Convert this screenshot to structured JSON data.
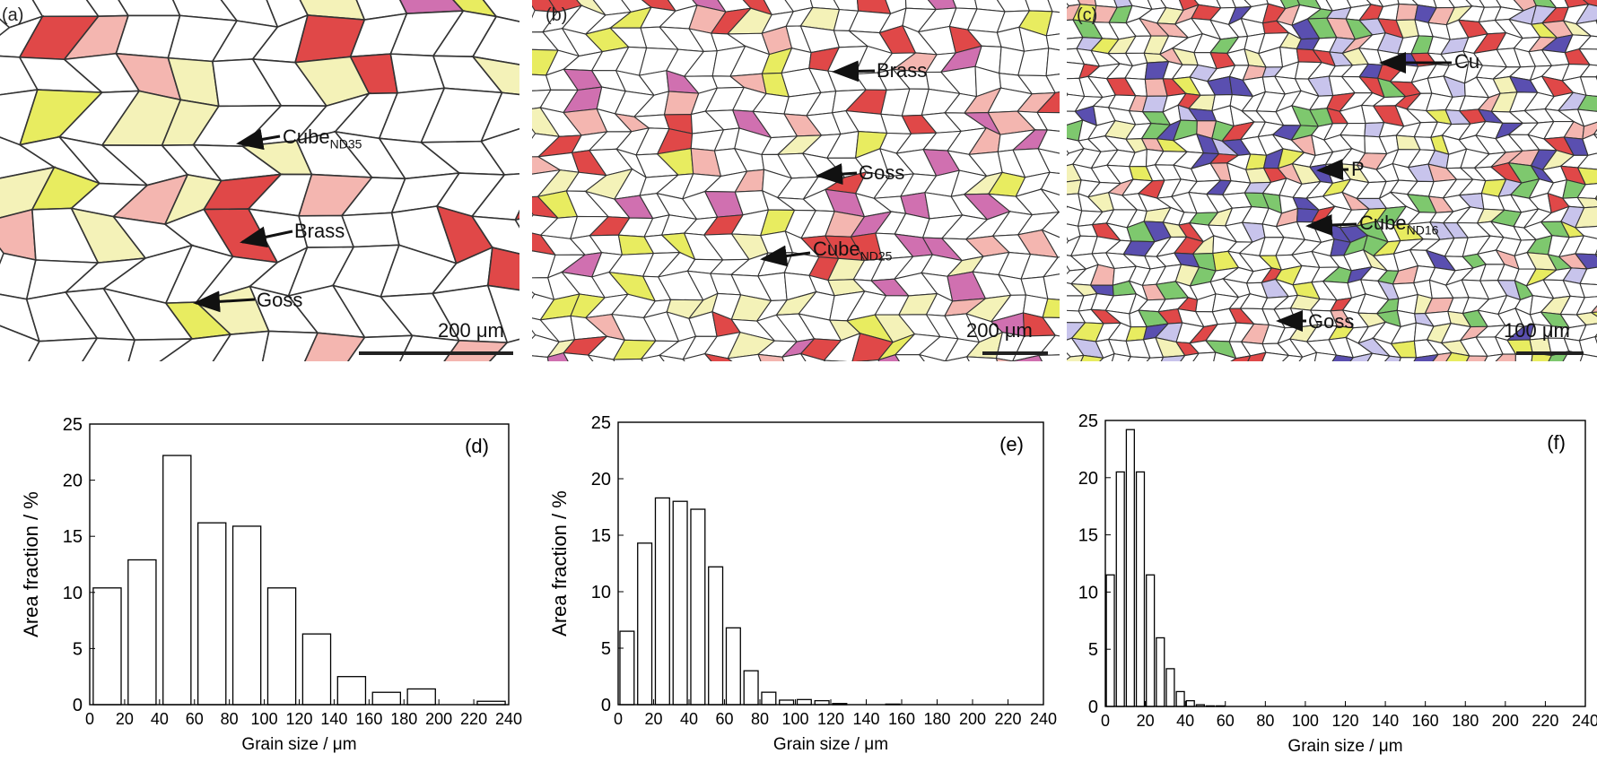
{
  "micrographs": [
    {
      "panel": "(a)",
      "scale_bar": "200 μm",
      "annotations": [
        {
          "text": "Cube",
          "sub": "ND35"
        },
        {
          "text": "Brass",
          "sub": ""
        },
        {
          "text": "Goss",
          "sub": ""
        }
      ]
    },
    {
      "panel": "(b)",
      "scale_bar": "200 μm",
      "annotations": [
        {
          "text": "Brass",
          "sub": ""
        },
        {
          "text": "Goss",
          "sub": ""
        },
        {
          "text": "Cube",
          "sub": "ND25"
        }
      ]
    },
    {
      "panel": "(c)",
      "scale_bar": "100 μm",
      "annotations": [
        {
          "text": "Cu",
          "sub": ""
        },
        {
          "text": "P",
          "sub": ""
        },
        {
          "text": "Cube",
          "sub": "ND16"
        },
        {
          "text": "Goss",
          "sub": ""
        }
      ]
    }
  ],
  "chart_data": [
    {
      "type": "bar",
      "panel": "(d)",
      "xlabel": "Grain size / μm",
      "ylabel": "Area fraction / %",
      "xlim": [
        0,
        240
      ],
      "ylim": [
        0,
        25
      ],
      "bin_width": 20,
      "x": [
        10,
        30,
        50,
        70,
        90,
        110,
        130,
        150,
        170,
        190,
        210,
        230
      ],
      "values": [
        10.4,
        12.9,
        22.2,
        16.2,
        15.9,
        10.4,
        6.3,
        2.5,
        1.1,
        1.4,
        0,
        0.3
      ]
    },
    {
      "type": "bar",
      "panel": "(e)",
      "xlabel": "Grain size / μm",
      "ylabel": "Area fraction / %",
      "xlim": [
        0,
        240
      ],
      "ylim": [
        0,
        25
      ],
      "bin_width": 10,
      "x": [
        5,
        15,
        25,
        35,
        45,
        55,
        65,
        75,
        85,
        95,
        105,
        115,
        125,
        135,
        145,
        155
      ],
      "values": [
        6.5,
        14.3,
        18.3,
        18.0,
        17.3,
        12.2,
        6.8,
        3.0,
        1.1,
        0.4,
        0.45,
        0.35,
        0.1,
        0,
        0,
        0.05
      ]
    },
    {
      "type": "bar",
      "panel": "(f)",
      "xlabel": "Grain size / μm",
      "ylabel": "Area fraction / %",
      "xlim": [
        0,
        240
      ],
      "ylim": [
        0,
        25
      ],
      "bin_width": 5,
      "x": [
        2.5,
        7.5,
        12.5,
        17.5,
        22.5,
        27.5,
        32.5,
        37.5,
        42.5,
        47.5,
        52.5,
        57.5
      ],
      "values": [
        11.5,
        20.5,
        24.2,
        20.5,
        11.5,
        6.0,
        3.3,
        1.3,
        0.5,
        0.15,
        0.05,
        0.05
      ]
    }
  ],
  "colors": {
    "cube": "#e04848",
    "brass": "#f4b6b0",
    "goss": "#e8ec60",
    "copper": "#7ec86e",
    "p": "#5a4fb0",
    "s": "#d070b0",
    "pale_yellow": "#f4f2b8",
    "lavender": "#c8c4ec"
  }
}
